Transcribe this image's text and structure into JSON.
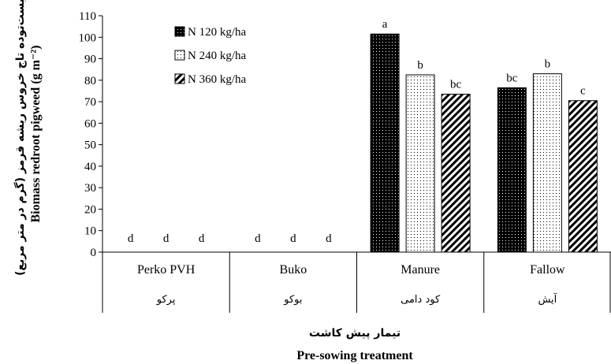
{
  "chart_data": {
    "type": "bar",
    "categories": [
      "Perko PVH",
      "Buko",
      "Manure",
      "Fallow"
    ],
    "categories_fa": [
      "پرکو",
      "بوکو",
      "کود دامی",
      "آیش"
    ],
    "series": [
      {
        "name": "N 120 kg/ha",
        "pattern": "dots-dark",
        "values": [
          0,
          0,
          101.5,
          76.5
        ],
        "labels": [
          "d",
          "d",
          "a",
          "bc"
        ]
      },
      {
        "name": "N 240 kg/ha",
        "pattern": "dots-light",
        "values": [
          0,
          0,
          82.5,
          83
        ],
        "labels": [
          "d",
          "d",
          "b",
          "b"
        ]
      },
      {
        "name": "N 360 kg/ha",
        "pattern": "hatch",
        "values": [
          0,
          0,
          73.5,
          70.5
        ],
        "labels": [
          "d",
          "d",
          "bc",
          "c"
        ]
      }
    ],
    "yticks": [
      0,
      10,
      20,
      30,
      40,
      50,
      60,
      70,
      80,
      90,
      100,
      110
    ],
    "ylim": [
      0,
      110
    ],
    "ylabel": "Biomass redroot pigweed (g m⁻²)",
    "ylabel_fa": "زیست‌توده تاج خروس ریشه قرمز (گرم در متر مربع)",
    "xlabel": "Pre-sowing treatment",
    "xlabel_fa": "تیمار پیش کاشت",
    "legend_position": "top-left",
    "grid": false
  }
}
